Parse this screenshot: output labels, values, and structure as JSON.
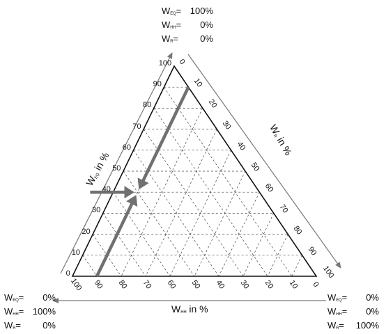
{
  "corners": {
    "top": {
      "rows": [
        {
          "sym": "W",
          "sub": "EQ",
          "eq": "=",
          "val": "100%"
        },
        {
          "sym": "W",
          "sub": "HH",
          "eq": "=",
          "val": "0%"
        },
        {
          "sym": "W",
          "sub": "R",
          "eq": "=",
          "val": "0%"
        }
      ]
    },
    "left": {
      "rows": [
        {
          "sym": "W",
          "sub": "EQ",
          "eq": "=",
          "val": "0%"
        },
        {
          "sym": "W",
          "sub": "HH",
          "eq": "=",
          "val": "100%"
        },
        {
          "sym": "W",
          "sub": "R",
          "eq": "=",
          "val": "0%"
        }
      ]
    },
    "right": {
      "rows": [
        {
          "sym": "W",
          "sub": "EQ",
          "eq": "=",
          "val": "0%"
        },
        {
          "sym": "W",
          "sub": "HH",
          "eq": "=",
          "val": "0%"
        },
        {
          "sym": "W",
          "sub": "R",
          "eq": "=",
          "val": "100%"
        }
      ]
    }
  },
  "axes": {
    "left": {
      "sym": "W",
      "sub": "EQ",
      "suffix": " in %"
    },
    "right": {
      "sym": "W",
      "sub": "R",
      "suffix": " in %"
    },
    "bottom": {
      "sym": "W",
      "sub": "HH",
      "suffix": " in %"
    }
  },
  "ticks": {
    "left": [
      "0",
      "10",
      "20",
      "30",
      "40",
      "50",
      "60",
      "70",
      "80",
      "90",
      "100"
    ],
    "right": [
      "0",
      "10",
      "20",
      "30",
      "40",
      "50",
      "60",
      "70",
      "80",
      "90",
      "100"
    ],
    "bottom": [
      "100",
      "90",
      "80",
      "70",
      "60",
      "50",
      "40",
      "30",
      "20",
      "10",
      "0"
    ]
  },
  "marked_point": {
    "W_EQ": 40,
    "W_HH": 50,
    "W_R": 10
  },
  "colors": {
    "grid": "#444444",
    "frame": "#111111",
    "arrow": "#707070",
    "guide": "#777777"
  }
}
